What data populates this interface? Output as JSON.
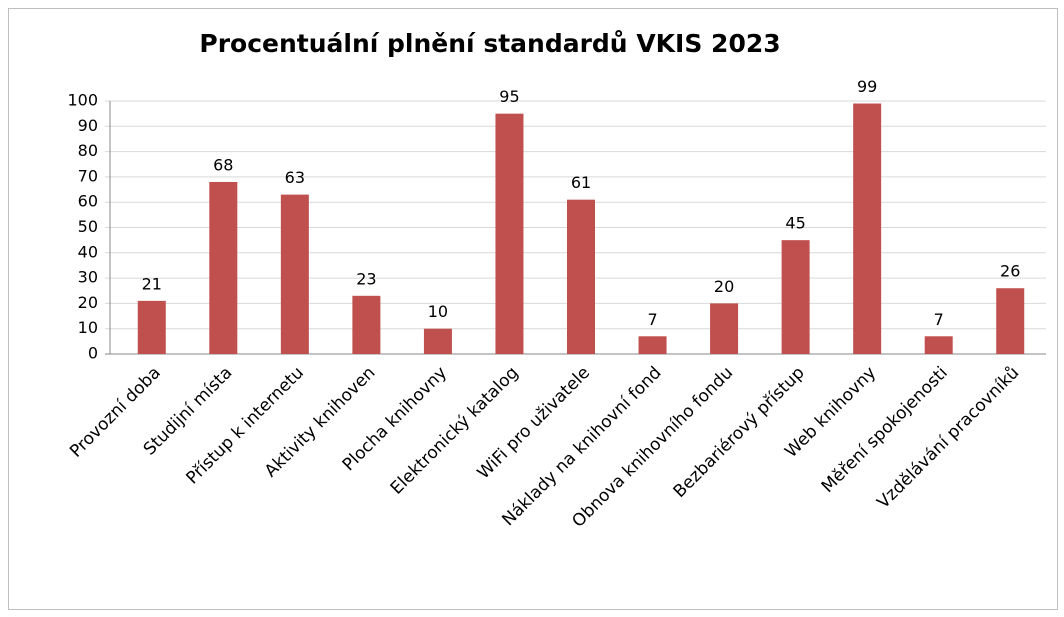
{
  "chart_data": {
    "type": "bar",
    "title": "Procentuální plnění standardů VKIS 2023",
    "categories": [
      "Provozní doba",
      "Studijní místa",
      "Přístup k internetu",
      "Aktivity knihoven",
      "Plocha knihovny",
      "Elektronický katalog",
      "WiFi pro uživatele",
      "Náklady na knihovní fond",
      "Obnova knihovního fondu",
      "Bezbariérový přístup",
      "Web knihovny",
      "Měření spokojenosti",
      "Vzdělávání pracovníků"
    ],
    "values": [
      21,
      68,
      63,
      23,
      10,
      95,
      61,
      7,
      20,
      45,
      99,
      7,
      26
    ],
    "color": "#c0504d",
    "ylim": [
      0,
      100
    ],
    "yticks": [
      0,
      10,
      20,
      30,
      40,
      50,
      60,
      70,
      80,
      90,
      100
    ],
    "grid": true
  }
}
